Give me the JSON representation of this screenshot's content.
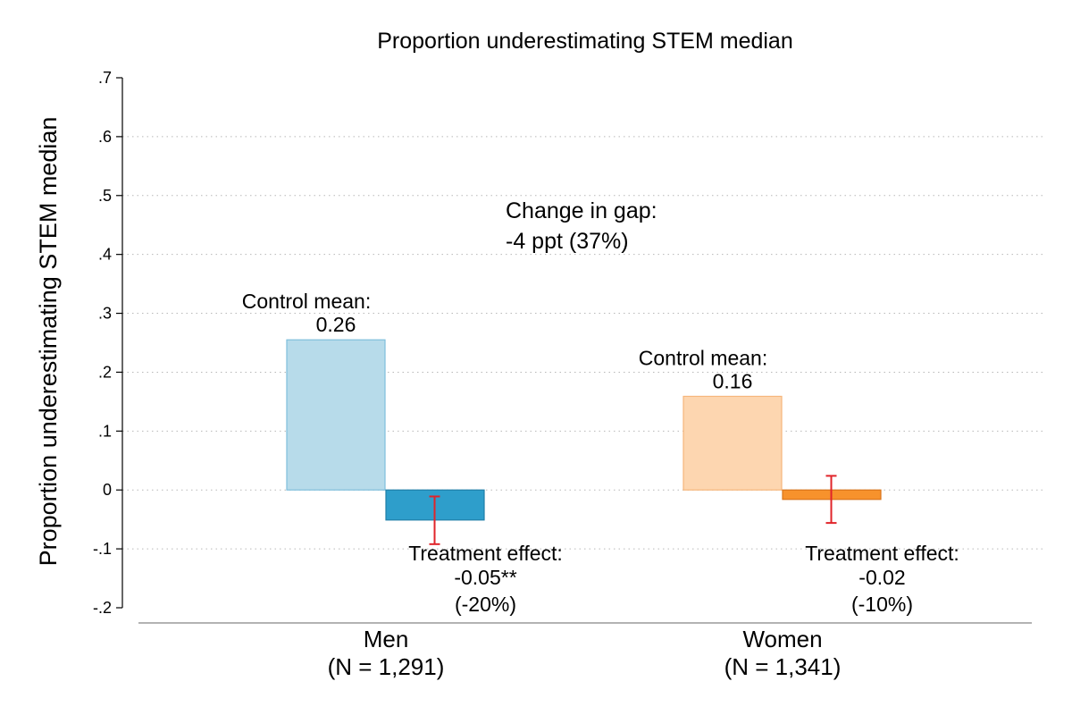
{
  "chart_data": {
    "type": "bar",
    "title": "Proportion underestimating STEM median",
    "ylabel": "Proportion underestimating STEM median",
    "ylim": [
      -0.2,
      0.7
    ],
    "yticks": [
      -0.2,
      -0.1,
      0,
      0.1,
      0.2,
      0.3,
      0.4,
      0.5,
      0.6,
      0.7
    ],
    "ytick_labels": [
      "-.2",
      "-.1",
      "0",
      ".1",
      ".2",
      ".3",
      ".4",
      ".5",
      ".6",
      ".7"
    ],
    "grid": true,
    "categories": [
      {
        "label": "Men",
        "sublabel": "(N = 1,291)",
        "control_mean": 0.255,
        "treatment_effect": -0.051,
        "ci": [
          -0.092,
          -0.011
        ],
        "control_color": "#b7dbea",
        "control_edge": "#7fbfdc",
        "treatment_color": "#2e9ecb",
        "treatment_edge": "#1f7fa8",
        "control_label": "Control mean:",
        "control_value": "0.26",
        "effect_label": "Treatment effect:",
        "effect_value": "-0.05**",
        "effect_pct": "(-20%)"
      },
      {
        "label": "Women",
        "sublabel": "(N = 1,341)",
        "control_mean": 0.159,
        "treatment_effect": -0.016,
        "ci": [
          -0.056,
          0.024
        ],
        "control_color": "#fdd6b0",
        "control_edge": "#f6b67c",
        "treatment_color": "#f7922c",
        "treatment_edge": "#d9741a",
        "control_label": "Control mean:",
        "control_value": "0.16",
        "effect_label": "Treatment effect:",
        "effect_value": "-0.02",
        "effect_pct": "(-10%)"
      }
    ],
    "ci_color": "#e0242a",
    "gap_annotation": {
      "line1": "Change in gap:",
      "line2": "-4 ppt (37%)",
      "color": "#dc3f7d"
    }
  }
}
